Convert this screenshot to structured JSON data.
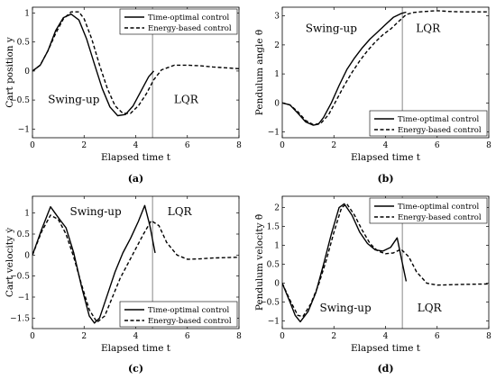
{
  "chart_data": [
    {
      "type": "line",
      "caption": "(a)",
      "xlabel": "Elapsed time t",
      "ylabel": "Cart position y",
      "xlim": [
        0,
        8
      ],
      "ylim": [
        -1.15,
        1.1
      ],
      "xticks": [
        0,
        2,
        4,
        6,
        8
      ],
      "yticks": [
        -1,
        -0.5,
        0,
        0.5,
        1
      ],
      "ytick_labels": [
        "−1",
        "−0.5",
        "0",
        "0.5",
        "1"
      ],
      "vline": 4.65,
      "regions": [
        {
          "text": "Swing-up",
          "x": 1.6,
          "y": -0.55
        },
        {
          "text": "LQR",
          "x": 5.95,
          "y": -0.55
        }
      ],
      "legend": {
        "placement": "top-right",
        "entries": [
          "Time-optimal control",
          "Energy-based control"
        ]
      },
      "series": [
        {
          "name": "Time-optimal control",
          "style": "solid",
          "x": [
            0,
            0.3,
            0.6,
            0.9,
            1.2,
            1.5,
            1.8,
            2.1,
            2.4,
            2.7,
            3.0,
            3.3,
            3.6,
            3.9,
            4.2,
            4.5,
            4.7
          ],
          "y": [
            0,
            0.1,
            0.35,
            0.7,
            0.92,
            0.98,
            0.88,
            0.55,
            0.12,
            -0.3,
            -0.62,
            -0.77,
            -0.75,
            -0.6,
            -0.35,
            -0.1,
            0
          ]
        },
        {
          "name": "Energy-based control",
          "style": "dashed",
          "x": [
            0,
            0.3,
            0.6,
            0.9,
            1.2,
            1.5,
            1.8,
            2.0,
            2.3,
            2.6,
            2.9,
            3.2,
            3.5,
            3.8,
            4.1,
            4.4,
            4.7,
            5.0,
            5.5,
            6.0,
            6.5,
            7.0,
            8.0
          ],
          "y": [
            0,
            0.1,
            0.35,
            0.65,
            0.9,
            1.02,
            1.02,
            0.9,
            0.55,
            0.1,
            -0.3,
            -0.6,
            -0.73,
            -0.73,
            -0.6,
            -0.4,
            -0.15,
            0.02,
            0.1,
            0.1,
            0.09,
            0.07,
            0.04
          ]
        }
      ]
    },
    {
      "type": "line",
      "caption": "(b)",
      "xlabel": "Elapsed time t",
      "ylabel": "Pendulum angle θ",
      "xlim": [
        0,
        8
      ],
      "ylim": [
        -1.2,
        3.3
      ],
      "xticks": [
        0,
        2,
        4,
        6,
        8
      ],
      "yticks": [
        -1,
        0,
        1,
        2,
        3
      ],
      "ytick_labels": [
        "−1",
        "0",
        "1",
        "2",
        "3"
      ],
      "vline": 4.65,
      "regions": [
        {
          "text": "Swing-up",
          "x": 1.9,
          "y": 2.45
        },
        {
          "text": "LQR",
          "x": 5.65,
          "y": 2.45
        }
      ],
      "legend": {
        "placement": "bottom-right",
        "entries": [
          "Time-optimal control",
          "Energy-based control"
        ]
      },
      "series": [
        {
          "name": "Time-optimal control",
          "style": "solid",
          "x": [
            0,
            0.3,
            0.6,
            0.9,
            1.2,
            1.4,
            1.6,
            1.9,
            2.2,
            2.5,
            2.8,
            3.1,
            3.4,
            3.7,
            4.0,
            4.3,
            4.6,
            4.8
          ],
          "y": [
            0,
            -0.07,
            -0.35,
            -0.65,
            -0.77,
            -0.73,
            -0.5,
            0,
            0.6,
            1.15,
            1.55,
            1.9,
            2.2,
            2.45,
            2.7,
            2.95,
            3.08,
            3.13
          ]
        },
        {
          "name": "Energy-based control",
          "style": "dashed",
          "x": [
            0,
            0.3,
            0.6,
            0.9,
            1.2,
            1.5,
            1.8,
            2.1,
            2.4,
            2.7,
            3.0,
            3.3,
            3.6,
            3.9,
            4.2,
            4.5,
            4.8,
            5.1,
            5.5,
            6.0,
            6.5,
            7.0,
            8.0
          ],
          "y": [
            0,
            -0.07,
            -0.3,
            -0.6,
            -0.75,
            -0.7,
            -0.4,
            0.1,
            0.6,
            1.05,
            1.45,
            1.8,
            2.1,
            2.35,
            2.55,
            2.8,
            3.05,
            3.12,
            3.15,
            3.18,
            3.15,
            3.14,
            3.14
          ]
        }
      ]
    },
    {
      "type": "line",
      "caption": "(c)",
      "xlabel": "Elapsed time t",
      "ylabel": "Cart velocity ẏ",
      "xlim": [
        0,
        8
      ],
      "ylim": [
        -1.75,
        1.4
      ],
      "xticks": [
        0,
        2,
        4,
        6,
        8
      ],
      "yticks": [
        -1.5,
        -1,
        -0.5,
        0,
        0.5,
        1
      ],
      "ytick_labels": [
        "−1.5",
        "−1",
        "−0.5",
        "0",
        "0.5",
        "1"
      ],
      "vline": 4.65,
      "regions": [
        {
          "text": "Swing-up",
          "x": 2.45,
          "y": 0.95
        },
        {
          "text": "LQR",
          "x": 5.7,
          "y": 0.95
        }
      ],
      "legend": {
        "placement": "bottom-right",
        "entries": [
          "Time-optimal control",
          "Energy-based control"
        ]
      },
      "series": [
        {
          "name": "Time-optimal control",
          "style": "solid",
          "x": [
            0,
            0.35,
            0.7,
            1.05,
            1.3,
            1.6,
            1.9,
            2.2,
            2.4,
            2.6,
            2.9,
            3.2,
            3.5,
            3.8,
            4.1,
            4.35,
            4.55,
            4.75
          ],
          "y": [
            0,
            0.6,
            1.15,
            0.85,
            0.65,
            0.05,
            -0.75,
            -1.45,
            -1.62,
            -1.5,
            -0.95,
            -0.4,
            0.05,
            0.4,
            0.8,
            1.18,
            0.7,
            0.05
          ]
        },
        {
          "name": "Energy-based control",
          "style": "dashed",
          "x": [
            0,
            0.35,
            0.7,
            1.0,
            1.3,
            1.6,
            1.9,
            2.2,
            2.5,
            2.8,
            3.1,
            3.4,
            3.7,
            4.0,
            4.3,
            4.6,
            4.9,
            5.2,
            5.6,
            6.0,
            6.5,
            7.0,
            8.0
          ],
          "y": [
            0,
            0.55,
            0.95,
            0.85,
            0.5,
            -0.05,
            -0.7,
            -1.3,
            -1.6,
            -1.45,
            -1.0,
            -0.55,
            -0.2,
            0.15,
            0.5,
            0.82,
            0.7,
            0.3,
            0.0,
            -0.1,
            -0.09,
            -0.07,
            -0.05
          ]
        }
      ]
    },
    {
      "type": "line",
      "caption": "(d)",
      "xlabel": "Elapsed time t",
      "ylabel": "Pendulum velocity θ̇",
      "xlim": [
        0,
        8
      ],
      "ylim": [
        -1.2,
        2.3
      ],
      "xticks": [
        0,
        2,
        4,
        6,
        8
      ],
      "yticks": [
        -1,
        -0.5,
        0,
        0.5,
        1,
        1.5,
        2
      ],
      "ytick_labels": [
        "−1",
        "−0.5",
        "0",
        "0.5",
        "1",
        "1.5",
        "2"
      ],
      "vline": 4.65,
      "regions": [
        {
          "text": "Swing-up",
          "x": 2.45,
          "y": -0.75
        },
        {
          "text": "LQR",
          "x": 5.7,
          "y": -0.75
        }
      ],
      "legend": {
        "placement": "top-right",
        "entries": [
          "Time-optimal control",
          "Energy-based control"
        ]
      },
      "series": [
        {
          "name": "Time-optimal control",
          "style": "solid",
          "x": [
            0,
            0.3,
            0.5,
            0.7,
            1.0,
            1.3,
            1.6,
            1.9,
            2.2,
            2.4,
            2.7,
            3.0,
            3.3,
            3.6,
            3.9,
            4.2,
            4.45,
            4.6,
            4.8
          ],
          "y": [
            0,
            -0.5,
            -0.85,
            -1.02,
            -0.75,
            -0.25,
            0.5,
            1.3,
            2.0,
            2.1,
            1.8,
            1.35,
            1.05,
            0.88,
            0.85,
            0.95,
            1.2,
            0.7,
            0.05
          ]
        },
        {
          "name": "Energy-based control",
          "style": "dashed",
          "x": [
            0,
            0.3,
            0.6,
            0.8,
            1.1,
            1.4,
            1.7,
            2.0,
            2.3,
            2.5,
            2.8,
            3.1,
            3.4,
            3.7,
            4.0,
            4.3,
            4.6,
            4.9,
            5.2,
            5.6,
            6.0,
            6.5,
            7.0,
            8.0
          ],
          "y": [
            0,
            -0.45,
            -0.85,
            -0.88,
            -0.55,
            -0.05,
            0.6,
            1.35,
            2.0,
            2.1,
            1.8,
            1.4,
            1.05,
            0.85,
            0.78,
            0.8,
            0.9,
            0.7,
            0.3,
            0.0,
            -0.05,
            -0.04,
            -0.03,
            -0.02
          ]
        }
      ]
    }
  ]
}
